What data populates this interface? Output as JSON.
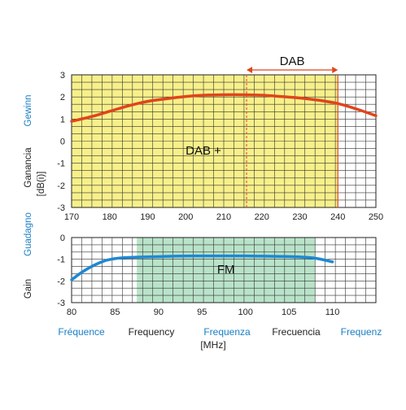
{
  "colors": {
    "dab_band": "#f7f08a",
    "fm_band": "#b9e3c9",
    "dab_curve": "#e0441c",
    "fm_curve": "#1e88d2",
    "grid": "#333333",
    "blue_text": "#1a7fc4",
    "dark_text": "#222222",
    "dab_arrow": "#e0441c"
  },
  "y_axis_labels": {
    "gewinn": "Gewinn",
    "ganancia": "Ganancia",
    "unit": "[dB(i)]",
    "guadagno": "Guadagno",
    "gain": "Gain"
  },
  "bottom_labels": {
    "frequence": "Fréquence",
    "frequency": "Frequency",
    "frequenza": "Frequenza",
    "frecuencia": "Frecuencia",
    "frequenz": "Frequenz",
    "unit": "[MHz]"
  },
  "chart_data": [
    {
      "type": "line",
      "band_label": "DAB +",
      "sub_band_label": "DAB",
      "xlim": [
        170,
        250
      ],
      "ylim": [
        -3,
        3
      ],
      "xticks": [
        170,
        180,
        190,
        200,
        210,
        220,
        230,
        240,
        250
      ],
      "xtick_labels": [
        "170",
        "180",
        "190",
        "200",
        "210",
        "220",
        "230",
        "240",
        "250"
      ],
      "yticks": [
        3,
        2,
        1,
        0,
        -1,
        -2,
        -3
      ],
      "ytick_labels": [
        "3",
        "2",
        "1",
        "0",
        "-1",
        "-2",
        "-3"
      ],
      "grid": true,
      "band_range": [
        170,
        240
      ],
      "sub_band_range": [
        216,
        240
      ],
      "series": [
        {
          "x": [
            170,
            175,
            180,
            185,
            190,
            195,
            200,
            205,
            210,
            215,
            220,
            225,
            230,
            235,
            240,
            245,
            250
          ],
          "y": [
            0.9,
            1.1,
            1.35,
            1.6,
            1.8,
            1.92,
            2.02,
            2.08,
            2.1,
            2.1,
            2.08,
            2.02,
            1.95,
            1.85,
            1.7,
            1.45,
            1.15
          ]
        }
      ]
    },
    {
      "type": "line",
      "band_label": "FM",
      "xlim": [
        80,
        115
      ],
      "ylim": [
        -3,
        0
      ],
      "xticks": [
        80,
        85,
        90,
        95,
        100,
        105,
        110
      ],
      "xtick_labels": [
        "80",
        "85",
        "90",
        "95",
        "100",
        "105",
        "110"
      ],
      "yticks": [
        0,
        -1,
        -2,
        -3
      ],
      "ytick_labels": [
        "0",
        "-1",
        "-2",
        "-3"
      ],
      "grid": true,
      "band_range": [
        87.5,
        108
      ],
      "series": [
        {
          "x": [
            80,
            81,
            82,
            83,
            84,
            85,
            86,
            88,
            90,
            92,
            94,
            96,
            98,
            100,
            102,
            104,
            106,
            108,
            110
          ],
          "y": [
            -1.95,
            -1.65,
            -1.4,
            -1.2,
            -1.05,
            -0.97,
            -0.93,
            -0.9,
            -0.88,
            -0.86,
            -0.85,
            -0.85,
            -0.85,
            -0.85,
            -0.86,
            -0.87,
            -0.89,
            -0.95,
            -1.12
          ]
        }
      ]
    }
  ]
}
